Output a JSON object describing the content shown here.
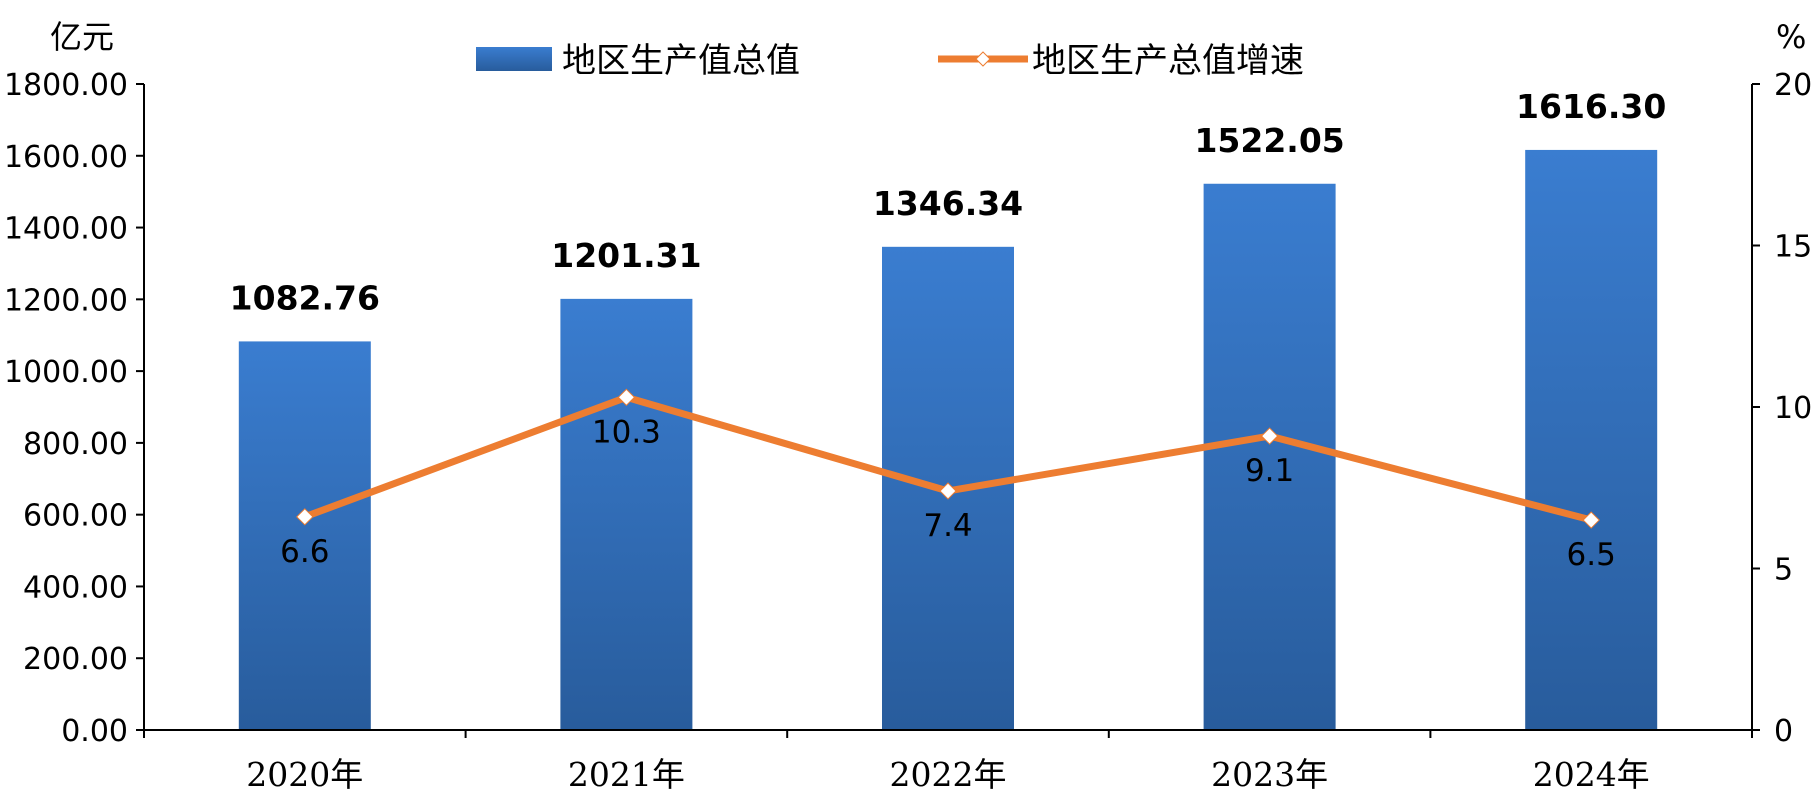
{
  "chart_data": {
    "type": "bar",
    "categories": [
      "2020年",
      "2021年",
      "2022年",
      "2023年",
      "2024年"
    ],
    "series": [
      {
        "name": "地区生产值总值",
        "type": "bar",
        "axis": "left",
        "values": [
          1082.76,
          1201.31,
          1346.34,
          1522.05,
          1616.3
        ],
        "value_labels": [
          "1082.76",
          "1201.31",
          "1346.34",
          "1522.05",
          "1616.30"
        ],
        "color": "#2E6AB3"
      },
      {
        "name": "地区生产总值增速",
        "type": "line",
        "axis": "right",
        "values": [
          6.6,
          10.3,
          7.4,
          9.1,
          6.5
        ],
        "value_labels": [
          "6.6",
          "10.3",
          "7.4",
          "9.1",
          "6.5"
        ],
        "color": "#ED7D31"
      }
    ],
    "y_left": {
      "unit": "亿元",
      "range": [
        0,
        1800
      ],
      "ticks": [
        "0.00",
        "200.00",
        "400.00",
        "600.00",
        "800.00",
        "1000.00",
        "1200.00",
        "1400.00",
        "1600.00",
        "1800.00"
      ]
    },
    "y_right": {
      "unit": "%",
      "range": [
        0,
        20
      ],
      "ticks": [
        "0",
        "5",
        "10",
        "15",
        "20"
      ]
    },
    "legend_position": "top",
    "grid": false
  }
}
